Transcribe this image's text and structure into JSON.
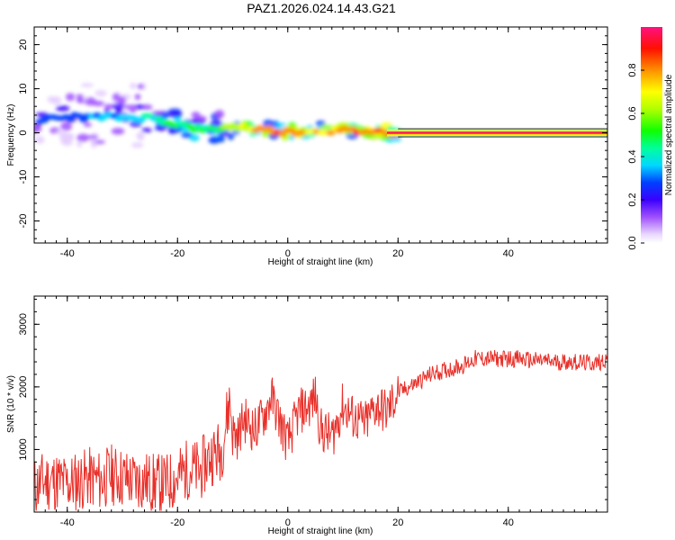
{
  "title": "PAZ1.2026.024.14.43.G21",
  "chart_data": [
    {
      "type": "heatmap",
      "name": "spectrogram",
      "xlabel": "Height of straight line (km)",
      "ylabel": "Frequency (Hz)",
      "xlim": [
        -46,
        58
      ],
      "ylim": [
        -25,
        24
      ],
      "xticks": [
        -40,
        -20,
        0,
        20,
        40
      ],
      "yticks": [
        -20,
        -10,
        0,
        10,
        20
      ],
      "tick_labels_x": [
        "-40",
        "-20",
        "0",
        "20",
        "40"
      ],
      "tick_labels_y": [
        "-20",
        "-10",
        "0",
        "10",
        "20"
      ],
      "ridge": {
        "description_points": [
          {
            "x": -44,
            "freq": 3.0,
            "amp": 0.25
          },
          {
            "x": -40,
            "freq": 3.5,
            "amp": 0.25
          },
          {
            "x": -35,
            "freq": 3.5,
            "amp": 0.3
          },
          {
            "x": -30,
            "freq": 3.5,
            "amp": 0.32
          },
          {
            "x": -25,
            "freq": 3.5,
            "amp": 0.4
          },
          {
            "x": -20,
            "freq": 2.0,
            "amp": 0.5
          },
          {
            "x": -15,
            "freq": 0.5,
            "amp": 0.45
          },
          {
            "x": -10,
            "freq": 1.5,
            "amp": 0.55
          },
          {
            "x": -5,
            "freq": 0.8,
            "amp": 0.75
          },
          {
            "x": 0,
            "freq": 0.2,
            "amp": 0.8
          },
          {
            "x": 5,
            "freq": 0.5,
            "amp": 0.75
          },
          {
            "x": 10,
            "freq": 0.5,
            "amp": 0.8
          },
          {
            "x": 15,
            "freq": 0.3,
            "amp": 0.75
          },
          {
            "x": 20,
            "freq": 0.0,
            "amp": 0.95
          },
          {
            "x": 58,
            "freq": 0.0,
            "amp": 0.95
          }
        ]
      }
    },
    {
      "type": "colorbar",
      "label": "Normalized spectral amplitude",
      "range": [
        0.0,
        1.0
      ],
      "ticks": [
        0.0,
        0.2,
        0.4,
        0.6,
        0.8
      ],
      "tick_labels": [
        "0.0",
        "0.2",
        "0.4",
        "0.6",
        "0.8"
      ]
    },
    {
      "type": "line",
      "name": "snr",
      "xlabel": "Height of straight line (km)",
      "ylabel": "SNR (10 * v/v)",
      "xlim": [
        -46,
        58
      ],
      "ylim": [
        0,
        3450
      ],
      "xticks": [
        -40,
        -20,
        0,
        20,
        40
      ],
      "yticks": [
        1000,
        2000,
        3000
      ],
      "tick_labels_x": [
        "-40",
        "-20",
        "0",
        "20",
        "40"
      ],
      "tick_labels_y": [
        "1000",
        "2000",
        "3000"
      ],
      "color": "#e8302a",
      "x": [
        -46,
        -44,
        -42,
        -40,
        -38,
        -36,
        -34,
        -32,
        -30,
        -28,
        -26,
        -24,
        -22,
        -20,
        -18,
        -16,
        -14,
        -12,
        -10.5,
        -10,
        -9,
        -8,
        -6,
        -4,
        -3,
        -2,
        0,
        2,
        4,
        5,
        6,
        8,
        10,
        12,
        14,
        16,
        18,
        20,
        22,
        24,
        26,
        28,
        30,
        32,
        34,
        36,
        38,
        40,
        42,
        44,
        46,
        48,
        50,
        52,
        54,
        56,
        58
      ],
      "y": [
        400,
        500,
        500,
        450,
        500,
        550,
        500,
        600,
        550,
        500,
        500,
        450,
        450,
        550,
        700,
        650,
        900,
        1000,
        1800,
        1300,
        1200,
        1500,
        1300,
        1600,
        1850,
        1600,
        1100,
        1600,
        1700,
        1850,
        1300,
        1200,
        1700,
        1500,
        1400,
        1700,
        1600,
        1900,
        2000,
        2100,
        2200,
        2250,
        2300,
        2350,
        2450,
        2450,
        2450,
        2450,
        2450,
        2420,
        2420,
        2400,
        2400,
        2400,
        2380,
        2380,
        2450
      ]
    }
  ]
}
